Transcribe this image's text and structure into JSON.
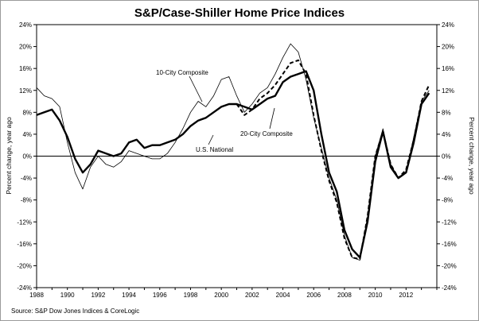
{
  "chart_data": {
    "type": "line",
    "title": "S&P/Case-Shiller Home Price Indices",
    "ylabel_left": "Percent change, year ago",
    "ylabel_right": "Percent change, year ago",
    "source": "Source: S&P Dow Jones Indices & CoreLogic",
    "xlim": [
      1988,
      2014
    ],
    "ylim": [
      -24,
      24
    ],
    "x_ticks": [
      1988,
      1990,
      1992,
      1994,
      1996,
      1998,
      2000,
      2002,
      2004,
      2006,
      2008,
      2010,
      2012
    ],
    "y_ticks": [
      24,
      20,
      16,
      12,
      8,
      4,
      0,
      -4,
      -8,
      -12,
      -16,
      -20,
      -24
    ],
    "y_tick_labels": [
      "24%",
      "20%",
      "16%",
      "12%",
      "8%",
      "4%",
      "0%",
      "-4%",
      "-8%",
      "-12%",
      "-16%",
      "-20%",
      "-24%"
    ],
    "annotations": [
      {
        "text": "10-City Composite",
        "series": "10-City Composite"
      },
      {
        "text": "20-City Composite",
        "series": "20-City Composite"
      },
      {
        "text": "U.S. National",
        "series": "U.S. National"
      }
    ],
    "series": [
      {
        "name": "10-City Composite",
        "style": "thin",
        "x": [
          1988,
          1988.5,
          1989,
          1989.5,
          1990,
          1990.5,
          1991,
          1991.5,
          1992,
          1992.5,
          1993,
          1993.5,
          1994,
          1994.5,
          1995,
          1995.5,
          1996,
          1996.5,
          1997,
          1997.5,
          1998,
          1998.5,
          1999,
          1999.5,
          2000,
          2000.5,
          2001,
          2001.5,
          2002,
          2002.5,
          2003,
          2003.5,
          2004,
          2004.5,
          2005,
          2005.5,
          2006,
          2006.5,
          2007,
          2007.5,
          2008,
          2008.5,
          2009,
          2009.5,
          2010,
          2010.5,
          2011,
          2011.5,
          2012,
          2012.5,
          2013,
          2013.5
        ],
        "y": [
          12.5,
          11.0,
          10.5,
          9.0,
          2.5,
          -3.0,
          -6.0,
          -2.0,
          0.0,
          -1.5,
          -2.0,
          -1.0,
          1.0,
          0.5,
          0.0,
          -0.5,
          -0.5,
          0.5,
          2.5,
          5.0,
          8.0,
          10.0,
          9.0,
          11.0,
          14.0,
          14.5,
          11.0,
          8.0,
          9.5,
          11.5,
          12.5,
          15.0,
          18.0,
          20.5,
          19.0,
          14.0,
          7.0,
          1.5,
          -4.0,
          -8.0,
          -14.5,
          -18.5,
          -19.0,
          -11.0,
          0.0,
          5.0,
          -1.5,
          -4.0,
          -3.0,
          3.5,
          10.0,
          12.0
        ]
      },
      {
        "name": "20-City Composite",
        "style": "dashed",
        "x": [
          2001,
          2001.5,
          2002,
          2002.5,
          2003,
          2003.5,
          2004,
          2004.5,
          2005,
          2005.5,
          2006,
          2006.5,
          2007,
          2007.5,
          2008,
          2008.5,
          2009,
          2009.5,
          2010,
          2010.5,
          2011,
          2011.5,
          2012,
          2012.5,
          2013,
          2013.5
        ],
        "y": [
          9.5,
          7.5,
          8.5,
          10.5,
          11.5,
          13.0,
          15.0,
          17.0,
          17.5,
          15.0,
          7.5,
          1.0,
          -4.5,
          -8.5,
          -15.0,
          -18.5,
          -18.8,
          -11.0,
          0.0,
          4.5,
          -1.5,
          -4.0,
          -2.5,
          3.0,
          10.0,
          13.0
        ]
      },
      {
        "name": "U.S. National",
        "style": "thick",
        "x": [
          1988,
          1988.5,
          1989,
          1989.5,
          1990,
          1990.5,
          1991,
          1991.5,
          1992,
          1992.5,
          1993,
          1993.5,
          1994,
          1994.5,
          1995,
          1995.5,
          1996,
          1996.5,
          1997,
          1997.5,
          1998,
          1998.5,
          1999,
          1999.5,
          2000,
          2000.5,
          2001,
          2001.5,
          2002,
          2002.5,
          2003,
          2003.5,
          2004,
          2004.5,
          2005,
          2005.5,
          2006,
          2006.5,
          2007,
          2007.5,
          2008,
          2008.5,
          2009,
          2009.5,
          2010,
          2010.5,
          2011,
          2011.5,
          2012,
          2012.5,
          2013,
          2013.5
        ],
        "y": [
          7.5,
          8.0,
          8.5,
          6.5,
          3.5,
          -0.5,
          -3.0,
          -1.5,
          1.0,
          0.5,
          0.0,
          0.5,
          2.5,
          3.0,
          1.5,
          2.0,
          2.0,
          2.5,
          3.0,
          4.0,
          5.5,
          6.5,
          7.0,
          8.0,
          9.0,
          9.5,
          9.5,
          9.0,
          8.5,
          9.5,
          10.5,
          11.0,
          13.5,
          14.5,
          15.0,
          15.5,
          12.0,
          4.0,
          -3.0,
          -6.5,
          -13.5,
          -17.0,
          -18.5,
          -12.0,
          -1.0,
          4.5,
          -2.0,
          -4.0,
          -3.0,
          2.5,
          9.5,
          11.5
        ]
      }
    ]
  }
}
